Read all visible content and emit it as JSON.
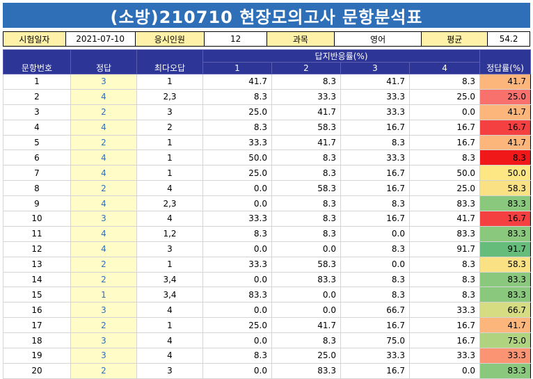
{
  "title": "(소방)210710 현장모의고사 문항분석표",
  "info": {
    "date_label": "시험일자",
    "date_value": "2021-07-10",
    "count_label": "응시인원",
    "count_value": "12",
    "subject_label": "과목",
    "subject_value": "영어",
    "avg_label": "평균",
    "avg_value": "54.2"
  },
  "headers": {
    "no": "문항번호",
    "answer": "정답",
    "top_wrong": "최다오답",
    "response_group": "답지반응률(%)",
    "c1": "1",
    "c2": "2",
    "c3": "3",
    "c4": "4",
    "rate": "정답률(%)"
  },
  "rows": [
    {
      "no": "1",
      "ans": "3",
      "wrong": "1",
      "c1": "41.7",
      "c2": "8.3",
      "c3": "41.7",
      "c4": "8.3",
      "rate": "41.7",
      "color": "#fcb57a"
    },
    {
      "no": "2",
      "ans": "4",
      "wrong": "2,3",
      "c1": "8.3",
      "c2": "33.3",
      "c3": "33.3",
      "c4": "25.0",
      "rate": "25.0",
      "color": "#f8716c"
    },
    {
      "no": "3",
      "ans": "2",
      "wrong": "3",
      "c1": "25.0",
      "c2": "41.7",
      "c3": "33.3",
      "c4": "0.0",
      "rate": "41.7",
      "color": "#fcb57a"
    },
    {
      "no": "4",
      "ans": "4",
      "wrong": "2",
      "c1": "8.3",
      "c2": "58.3",
      "c3": "16.7",
      "c4": "16.7",
      "rate": "16.7",
      "color": "#f44040"
    },
    {
      "no": "5",
      "ans": "2",
      "wrong": "1",
      "c1": "33.3",
      "c2": "41.7",
      "c3": "8.3",
      "c4": "16.7",
      "rate": "41.7",
      "color": "#fcb57a"
    },
    {
      "no": "6",
      "ans": "4",
      "wrong": "1",
      "c1": "50.0",
      "c2": "8.3",
      "c3": "33.3",
      "c4": "8.3",
      "rate": "8.3",
      "color": "#f01818"
    },
    {
      "no": "7",
      "ans": "4",
      "wrong": "1",
      "c1": "25.0",
      "c2": "8.3",
      "c3": "16.7",
      "c4": "50.0",
      "rate": "50.0",
      "color": "#fde784"
    },
    {
      "no": "8",
      "ans": "2",
      "wrong": "4",
      "c1": "0.0",
      "c2": "58.3",
      "c3": "16.7",
      "c4": "25.0",
      "rate": "58.3",
      "color": "#fae183"
    },
    {
      "no": "9",
      "ans": "4",
      "wrong": "2,3",
      "c1": "0.0",
      "c2": "8.3",
      "c3": "8.3",
      "c4": "83.3",
      "rate": "83.3",
      "color": "#8ac87e"
    },
    {
      "no": "10",
      "ans": "3",
      "wrong": "4",
      "c1": "33.3",
      "c2": "8.3",
      "c3": "16.7",
      "c4": "41.7",
      "rate": "16.7",
      "color": "#f44040"
    },
    {
      "no": "11",
      "ans": "4",
      "wrong": "1,2",
      "c1": "8.3",
      "c2": "8.3",
      "c3": "0.0",
      "c4": "83.3",
      "rate": "83.3",
      "color": "#8ac87e"
    },
    {
      "no": "12",
      "ans": "4",
      "wrong": "3",
      "c1": "0.0",
      "c2": "0.0",
      "c3": "8.3",
      "c4": "91.7",
      "rate": "91.7",
      "color": "#66bd7b"
    },
    {
      "no": "13",
      "ans": "2",
      "wrong": "1",
      "c1": "33.3",
      "c2": "58.3",
      "c3": "0.0",
      "c4": "8.3",
      "rate": "58.3",
      "color": "#fae183"
    },
    {
      "no": "14",
      "ans": "2",
      "wrong": "3,4",
      "c1": "0.0",
      "c2": "83.3",
      "c3": "8.3",
      "c4": "8.3",
      "rate": "83.3",
      "color": "#8ac87e"
    },
    {
      "no": "15",
      "ans": "1",
      "wrong": "3,4",
      "c1": "83.3",
      "c2": "0.0",
      "c3": "8.3",
      "c4": "8.3",
      "rate": "83.3",
      "color": "#8ac87e"
    },
    {
      "no": "16",
      "ans": "3",
      "wrong": "4",
      "c1": "0.0",
      "c2": "0.0",
      "c3": "66.7",
      "c4": "33.3",
      "rate": "66.7",
      "color": "#d5dc82"
    },
    {
      "no": "17",
      "ans": "2",
      "wrong": "1",
      "c1": "25.0",
      "c2": "41.7",
      "c3": "16.7",
      "c4": "16.7",
      "rate": "41.7",
      "color": "#fcb57a"
    },
    {
      "no": "18",
      "ans": "3",
      "wrong": "4",
      "c1": "0.0",
      "c2": "8.3",
      "c3": "75.0",
      "c4": "16.7",
      "rate": "75.0",
      "color": "#b0d380"
    },
    {
      "no": "19",
      "ans": "3",
      "wrong": "4",
      "c1": "8.3",
      "c2": "25.0",
      "c3": "33.3",
      "c4": "33.3",
      "rate": "33.3",
      "color": "#fa9473"
    },
    {
      "no": "20",
      "ans": "2",
      "wrong": "3",
      "c1": "0.0",
      "c2": "83.3",
      "c3": "16.7",
      "c4": "0.0",
      "rate": "83.3",
      "color": "#8ac87e"
    }
  ]
}
